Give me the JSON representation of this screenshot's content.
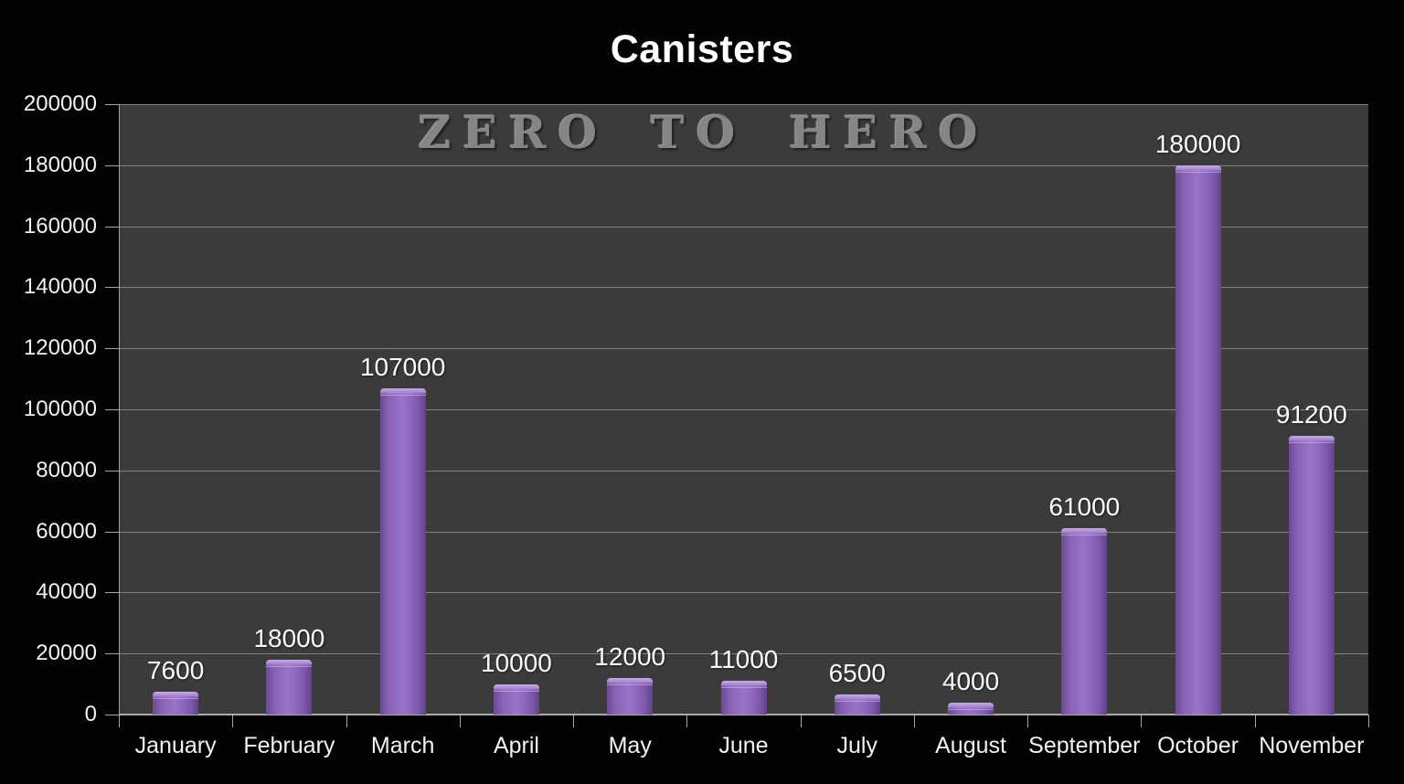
{
  "title": "Canisters",
  "watermark": "ZERO TO HERO",
  "colors": {
    "page_background": "#030303",
    "plot_background": "#3b3b3b",
    "gridline": "#9a9a9a",
    "axis": "#a5a5a5",
    "text": "#f2f2f2",
    "bar_purple": "#9168c0",
    "bar_edge_dark": "#5f4287",
    "bar_bevel_light": "#c4abdf",
    "watermark_gray": "#858585",
    "title_white": "#ffffff"
  },
  "chart_data": {
    "type": "bar",
    "title": "Canisters",
    "watermark": "ZERO TO HERO",
    "categories": [
      "January",
      "February",
      "March",
      "April",
      "May",
      "June",
      "July",
      "August",
      "September",
      "October",
      "November"
    ],
    "values": [
      7600,
      18000,
      107000,
      10000,
      12000,
      11000,
      6500,
      4000,
      61000,
      180000,
      91200
    ],
    "data_labels": [
      "7600",
      "18000",
      "107000",
      "10000",
      "12000",
      "11000",
      "6500",
      "4000",
      "61000",
      "180000",
      "91200"
    ],
    "xlabel": "",
    "ylabel": "",
    "ylim": [
      0,
      200000
    ],
    "ytick_interval": 20000,
    "ytick_labels": [
      "0",
      "20000",
      "40000",
      "60000",
      "80000",
      "100000",
      "120000",
      "140000",
      "160000",
      "180000",
      "200000"
    ],
    "grid": true,
    "legend": false,
    "data_labels_shown": true
  }
}
